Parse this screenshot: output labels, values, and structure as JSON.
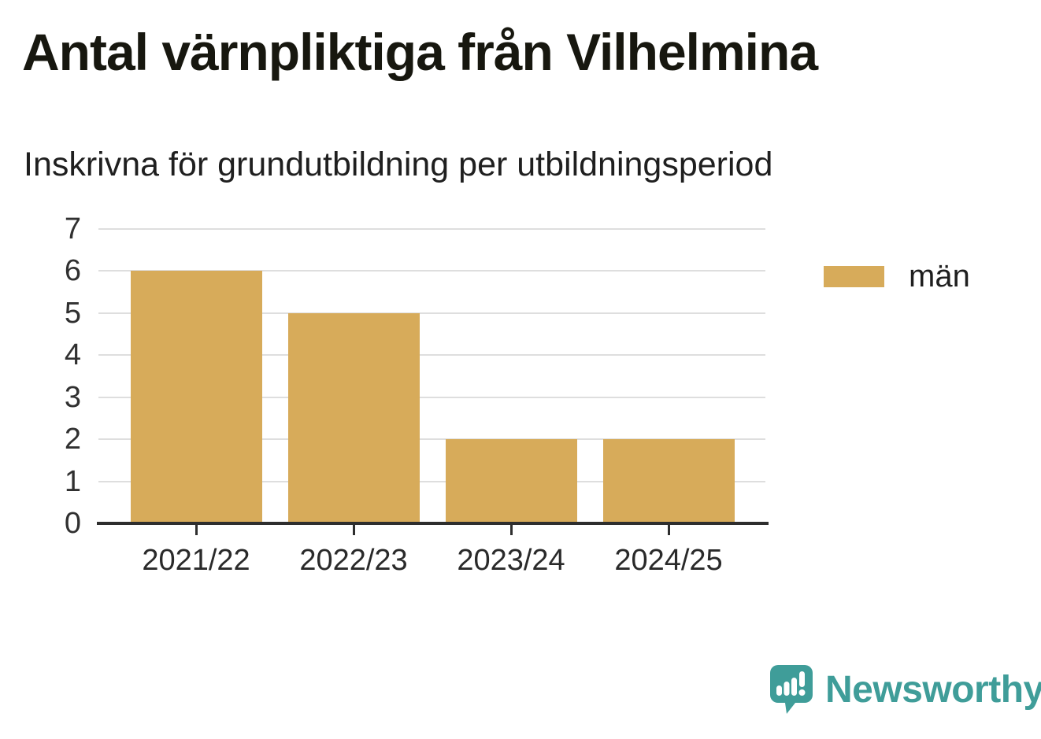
{
  "chart_data": {
    "type": "bar",
    "title": "Antal värnpliktiga från Vilhelmina",
    "subtitle": "Inskrivna för grundutbildning per utbildningsperiod",
    "categories": [
      "2021/22",
      "2022/23",
      "2023/24",
      "2024/25"
    ],
    "series": [
      {
        "name": "män",
        "values": [
          6,
          5,
          2,
          2
        ]
      }
    ],
    "xlabel": "",
    "ylabel": "",
    "ylim": [
      0,
      7
    ],
    "yticks": [
      0,
      1,
      2,
      3,
      4,
      5,
      6,
      7
    ],
    "grid": true,
    "legend_position": "right",
    "bar_color": "#d7ab5a"
  },
  "legend": {
    "items": [
      {
        "label": "män",
        "color": "#d7ab5a"
      }
    ]
  },
  "footer": {
    "brand": "Newsworthy"
  },
  "colors": {
    "bar": "#d7ab5a",
    "gridline": "#dedede",
    "axis": "#2e2e2e",
    "title_text": "#17170f",
    "brand_teal": "#3f9d99",
    "background": "#ffffff"
  }
}
